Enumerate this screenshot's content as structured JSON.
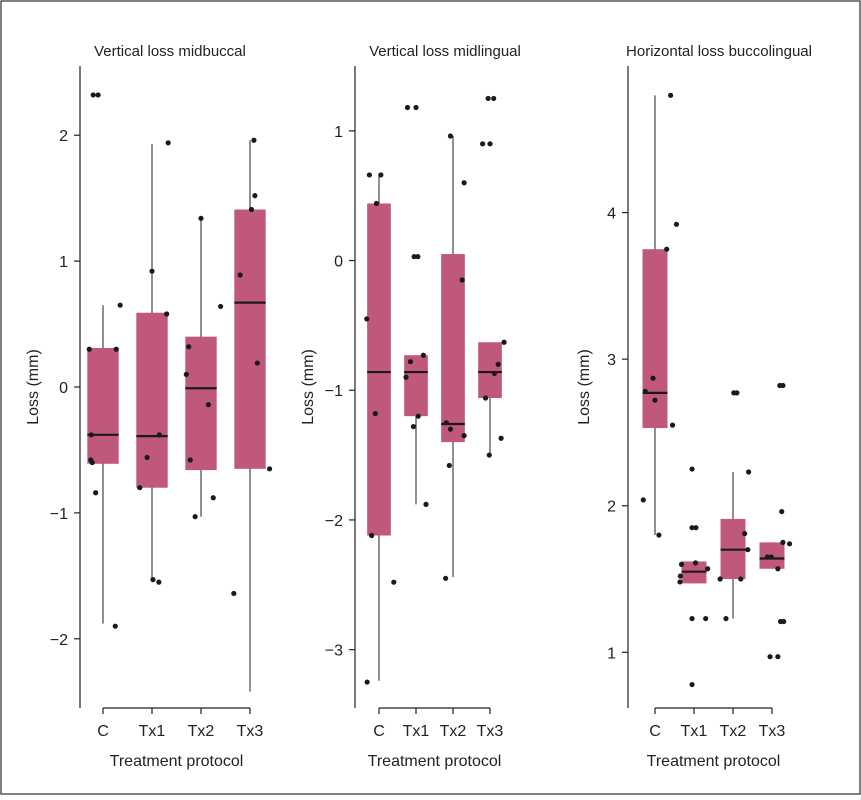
{
  "chart_data": [
    {
      "type": "box",
      "title": "Vertical loss midbuccal",
      "xlabel": "Treatment protocol",
      "ylabel": "Loss (mm)",
      "categories": [
        "C",
        "Tx1",
        "Tx2",
        "Tx3"
      ],
      "ylim": [
        -2.55,
        2.55
      ],
      "yticks": [
        2,
        1,
        0,
        -1,
        -2
      ],
      "ytick_labels": [
        "2",
        "1",
        "0",
        "−1",
        "−2"
      ],
      "boxes": [
        {
          "category": "C",
          "whisker_low": -1.88,
          "q1": -0.61,
          "median": -0.38,
          "q3": 0.31,
          "whisker_high": 0.65
        },
        {
          "category": "Tx1",
          "whisker_low": -1.54,
          "q1": -0.8,
          "median": -0.39,
          "q3": 0.59,
          "whisker_high": 1.93
        },
        {
          "category": "Tx2",
          "whisker_low": -1.03,
          "q1": -0.66,
          "median": -0.01,
          "q3": 0.4,
          "whisker_high": 1.34
        },
        {
          "category": "Tx3",
          "whisker_low": -2.42,
          "q1": -0.65,
          "median": 0.67,
          "q3": 1.41,
          "whisker_high": 1.96
        }
      ],
      "points": [
        {
          "category": "C",
          "offset": -0.28,
          "y": 0.3
        },
        {
          "category": "C",
          "offset": -0.24,
          "y": -0.38
        },
        {
          "category": "C",
          "offset": -0.22,
          "y": -0.6
        },
        {
          "category": "C",
          "offset": -0.25,
          "y": -0.58
        },
        {
          "category": "C",
          "offset": -0.15,
          "y": -0.84
        },
        {
          "category": "C",
          "offset": 0.27,
          "y": 0.3
        },
        {
          "category": "C",
          "offset": 0.35,
          "y": 0.65
        },
        {
          "category": "C",
          "offset": -0.2,
          "y": 2.32
        },
        {
          "category": "C",
          "offset": -0.1,
          "y": 2.32
        },
        {
          "category": "C",
          "offset": 0.25,
          "y": -1.9
        },
        {
          "category": "Tx1",
          "offset": -0.25,
          "y": -0.8
        },
        {
          "category": "Tx1",
          "offset": -0.1,
          "y": -0.56
        },
        {
          "category": "Tx1",
          "offset": 0.0,
          "y": 0.92
        },
        {
          "category": "Tx1",
          "offset": 0.15,
          "y": -0.38
        },
        {
          "category": "Tx1",
          "offset": 0.3,
          "y": 0.58
        },
        {
          "category": "Tx1",
          "offset": 0.33,
          "y": 1.94
        },
        {
          "category": "Tx1",
          "offset": 0.02,
          "y": -1.53
        },
        {
          "category": "Tx1",
          "offset": 0.14,
          "y": -1.55
        },
        {
          "category": "Tx2",
          "offset": -0.3,
          "y": 0.1
        },
        {
          "category": "Tx2",
          "offset": -0.25,
          "y": 0.32
        },
        {
          "category": "Tx2",
          "offset": -0.22,
          "y": -0.58
        },
        {
          "category": "Tx2",
          "offset": -0.12,
          "y": -1.03
        },
        {
          "category": "Tx2",
          "offset": 0.0,
          "y": 1.34
        },
        {
          "category": "Tx2",
          "offset": 0.15,
          "y": -0.14
        },
        {
          "category": "Tx2",
          "offset": 0.25,
          "y": -0.88
        },
        {
          "category": "Tx2",
          "offset": 0.4,
          "y": 0.64
        },
        {
          "category": "Tx3",
          "offset": -0.2,
          "y": 0.89
        },
        {
          "category": "Tx3",
          "offset": -0.33,
          "y": -1.64
        },
        {
          "category": "Tx3",
          "offset": 0.03,
          "y": 1.41
        },
        {
          "category": "Tx3",
          "offset": 0.1,
          "y": 1.52
        },
        {
          "category": "Tx3",
          "offset": 0.08,
          "y": 1.96
        },
        {
          "category": "Tx3",
          "offset": 0.15,
          "y": 0.19
        },
        {
          "category": "Tx3",
          "offset": 0.4,
          "y": -0.65
        }
      ]
    },
    {
      "type": "box",
      "title": "Vertical loss midlingual",
      "xlabel": "Treatment protocol",
      "ylabel": "Loss (mm)",
      "categories": [
        "C",
        "Tx1",
        "Tx2",
        "Tx3"
      ],
      "ylim": [
        -3.45,
        1.5
      ],
      "yticks": [
        1,
        0,
        -1,
        -2,
        -3
      ],
      "ytick_labels": [
        "1",
        "0",
        "−1",
        "−2",
        "−3"
      ],
      "boxes": [
        {
          "category": "C",
          "whisker_low": -3.24,
          "q1": -2.12,
          "median": -0.86,
          "q3": 0.44,
          "whisker_high": 0.66
        },
        {
          "category": "Tx1",
          "whisker_low": -1.88,
          "q1": -1.2,
          "median": -0.86,
          "q3": -0.73,
          "whisker_high": -0.73
        },
        {
          "category": "Tx2",
          "whisker_low": -2.44,
          "q1": -1.4,
          "median": -1.26,
          "q3": 0.05,
          "whisker_high": 0.96
        },
        {
          "category": "Tx3",
          "whisker_low": -1.5,
          "q1": -1.06,
          "median": -0.86,
          "q3": -0.63,
          "whisker_high": -0.63
        }
      ],
      "points": [
        {
          "category": "C",
          "offset": -0.26,
          "y": 0.66
        },
        {
          "category": "C",
          "offset": 0.05,
          "y": 0.66
        },
        {
          "category": "C",
          "offset": -0.07,
          "y": 0.44
        },
        {
          "category": "C",
          "offset": -0.33,
          "y": -0.45
        },
        {
          "category": "C",
          "offset": -0.1,
          "y": -1.18
        },
        {
          "category": "C",
          "offset": -0.2,
          "y": -2.12
        },
        {
          "category": "C",
          "offset": 0.4,
          "y": -2.48
        },
        {
          "category": "C",
          "offset": -0.32,
          "y": -3.25
        },
        {
          "category": "Tx1",
          "offset": -0.27,
          "y": -0.9
        },
        {
          "category": "Tx1",
          "offset": -0.15,
          "y": -0.78
        },
        {
          "category": "Tx1",
          "offset": -0.07,
          "y": -1.28
        },
        {
          "category": "Tx1",
          "offset": 0.06,
          "y": -1.2
        },
        {
          "category": "Tx1",
          "offset": 0.2,
          "y": -0.73
        },
        {
          "category": "Tx1",
          "offset": 0.27,
          "y": -1.88
        },
        {
          "category": "Tx1",
          "offset": -0.05,
          "y": 0.03
        },
        {
          "category": "Tx1",
          "offset": 0.05,
          "y": 0.03
        },
        {
          "category": "Tx1",
          "offset": -0.23,
          "y": 1.18
        },
        {
          "category": "Tx1",
          "offset": 0.0,
          "y": 1.18
        },
        {
          "category": "Tx2",
          "offset": -0.07,
          "y": 0.96
        },
        {
          "category": "Tx2",
          "offset": 0.3,
          "y": 0.6
        },
        {
          "category": "Tx2",
          "offset": 0.25,
          "y": -0.15
        },
        {
          "category": "Tx2",
          "offset": -0.18,
          "y": -1.25
        },
        {
          "category": "Tx2",
          "offset": -0.07,
          "y": -1.3
        },
        {
          "category": "Tx2",
          "offset": 0.3,
          "y": -1.35
        },
        {
          "category": "Tx2",
          "offset": -0.1,
          "y": -1.58
        },
        {
          "category": "Tx2",
          "offset": -0.2,
          "y": -2.45
        },
        {
          "category": "Tx3",
          "offset": -0.2,
          "y": 0.9
        },
        {
          "category": "Tx3",
          "offset": 0.0,
          "y": 0.9
        },
        {
          "category": "Tx3",
          "offset": -0.05,
          "y": 1.25
        },
        {
          "category": "Tx3",
          "offset": 0.1,
          "y": 1.25
        },
        {
          "category": "Tx3",
          "offset": 0.12,
          "y": -0.87
        },
        {
          "category": "Tx3",
          "offset": 0.22,
          "y": -0.8
        },
        {
          "category": "Tx3",
          "offset": 0.38,
          "y": -0.63
        },
        {
          "category": "Tx3",
          "offset": -0.12,
          "y": -1.06
        },
        {
          "category": "Tx3",
          "offset": 0.3,
          "y": -1.37
        },
        {
          "category": "Tx3",
          "offset": -0.02,
          "y": -1.5
        }
      ]
    },
    {
      "type": "box",
      "title": "Horizontal loss buccolingual",
      "xlabel": "Treatment protocol",
      "ylabel": "Loss (mm)",
      "categories": [
        "C",
        "Tx1",
        "Tx2",
        "Tx3"
      ],
      "ylim": [
        0.62,
        5.0
      ],
      "yticks": [
        4,
        3,
        2,
        1
      ],
      "ytick_labels": [
        "4",
        "3",
        "2",
        "1"
      ],
      "boxes": [
        {
          "category": "C",
          "whisker_low": 1.8,
          "q1": 2.53,
          "median": 2.77,
          "q3": 3.75,
          "whisker_high": 4.8
        },
        {
          "category": "Tx1",
          "whisker_low": 1.47,
          "q1": 1.47,
          "median": 1.55,
          "q3": 1.62,
          "whisker_high": 1.62
        },
        {
          "category": "Tx2",
          "whisker_low": 1.23,
          "q1": 1.5,
          "median": 1.7,
          "q3": 1.91,
          "whisker_high": 2.23
        },
        {
          "category": "Tx3",
          "whisker_low": 1.57,
          "q1": 1.57,
          "median": 1.64,
          "q3": 1.75,
          "whisker_high": 1.75
        }
      ],
      "points": [
        {
          "category": "C",
          "offset": 0.4,
          "y": 4.8
        },
        {
          "category": "C",
          "offset": 0.55,
          "y": 3.92
        },
        {
          "category": "C",
          "offset": 0.3,
          "y": 3.75
        },
        {
          "category": "C",
          "offset": -0.05,
          "y": 2.87
        },
        {
          "category": "C",
          "offset": -0.25,
          "y": 2.78
        },
        {
          "category": "C",
          "offset": 0.0,
          "y": 2.72
        },
        {
          "category": "C",
          "offset": 0.45,
          "y": 2.55
        },
        {
          "category": "C",
          "offset": -0.3,
          "y": 2.04
        },
        {
          "category": "C",
          "offset": 0.1,
          "y": 1.8
        },
        {
          "category": "Tx1",
          "offset": -0.05,
          "y": 2.25
        },
        {
          "category": "Tx1",
          "offset": -0.05,
          "y": 1.85
        },
        {
          "category": "Tx1",
          "offset": 0.05,
          "y": 1.85
        },
        {
          "category": "Tx1",
          "offset": -0.32,
          "y": 1.6
        },
        {
          "category": "Tx1",
          "offset": 0.04,
          "y": 1.61
        },
        {
          "category": "Tx1",
          "offset": 0.35,
          "y": 1.57
        },
        {
          "category": "Tx1",
          "offset": -0.35,
          "y": 1.52
        },
        {
          "category": "Tx1",
          "offset": -0.36,
          "y": 1.48
        },
        {
          "category": "Tx1",
          "offset": -0.05,
          "y": 1.23
        },
        {
          "category": "Tx1",
          "offset": 0.3,
          "y": 1.23
        },
        {
          "category": "Tx1",
          "offset": -0.05,
          "y": 0.78
        },
        {
          "category": "Tx2",
          "offset": 0.02,
          "y": 2.77
        },
        {
          "category": "Tx2",
          "offset": 0.1,
          "y": 2.77
        },
        {
          "category": "Tx2",
          "offset": 0.4,
          "y": 2.23
        },
        {
          "category": "Tx2",
          "offset": 0.3,
          "y": 1.81
        },
        {
          "category": "Tx2",
          "offset": 0.38,
          "y": 1.7
        },
        {
          "category": "Tx2",
          "offset": -0.33,
          "y": 1.5
        },
        {
          "category": "Tx2",
          "offset": 0.2,
          "y": 1.5
        },
        {
          "category": "Tx2",
          "offset": -0.18,
          "y": 1.23
        },
        {
          "category": "Tx3",
          "offset": 0.2,
          "y": 2.82
        },
        {
          "category": "Tx3",
          "offset": 0.28,
          "y": 2.82
        },
        {
          "category": "Tx3",
          "offset": 0.25,
          "y": 1.96
        },
        {
          "category": "Tx3",
          "offset": 0.28,
          "y": 1.75
        },
        {
          "category": "Tx3",
          "offset": 0.45,
          "y": 1.74
        },
        {
          "category": "Tx3",
          "offset": -0.12,
          "y": 1.65
        },
        {
          "category": "Tx3",
          "offset": -0.02,
          "y": 1.65
        },
        {
          "category": "Tx3",
          "offset": 0.15,
          "y": 1.57
        },
        {
          "category": "Tx3",
          "offset": 0.22,
          "y": 1.21
        },
        {
          "category": "Tx3",
          "offset": 0.3,
          "y": 1.21
        },
        {
          "category": "Tx3",
          "offset": -0.05,
          "y": 0.97
        },
        {
          "category": "Tx3",
          "offset": 0.15,
          "y": 0.97
        }
      ]
    }
  ],
  "colors": {
    "box_fill": "#c0577c",
    "points": "#1a1a1a",
    "median": "#1a1a1a",
    "frame": "#2b2b2b"
  }
}
